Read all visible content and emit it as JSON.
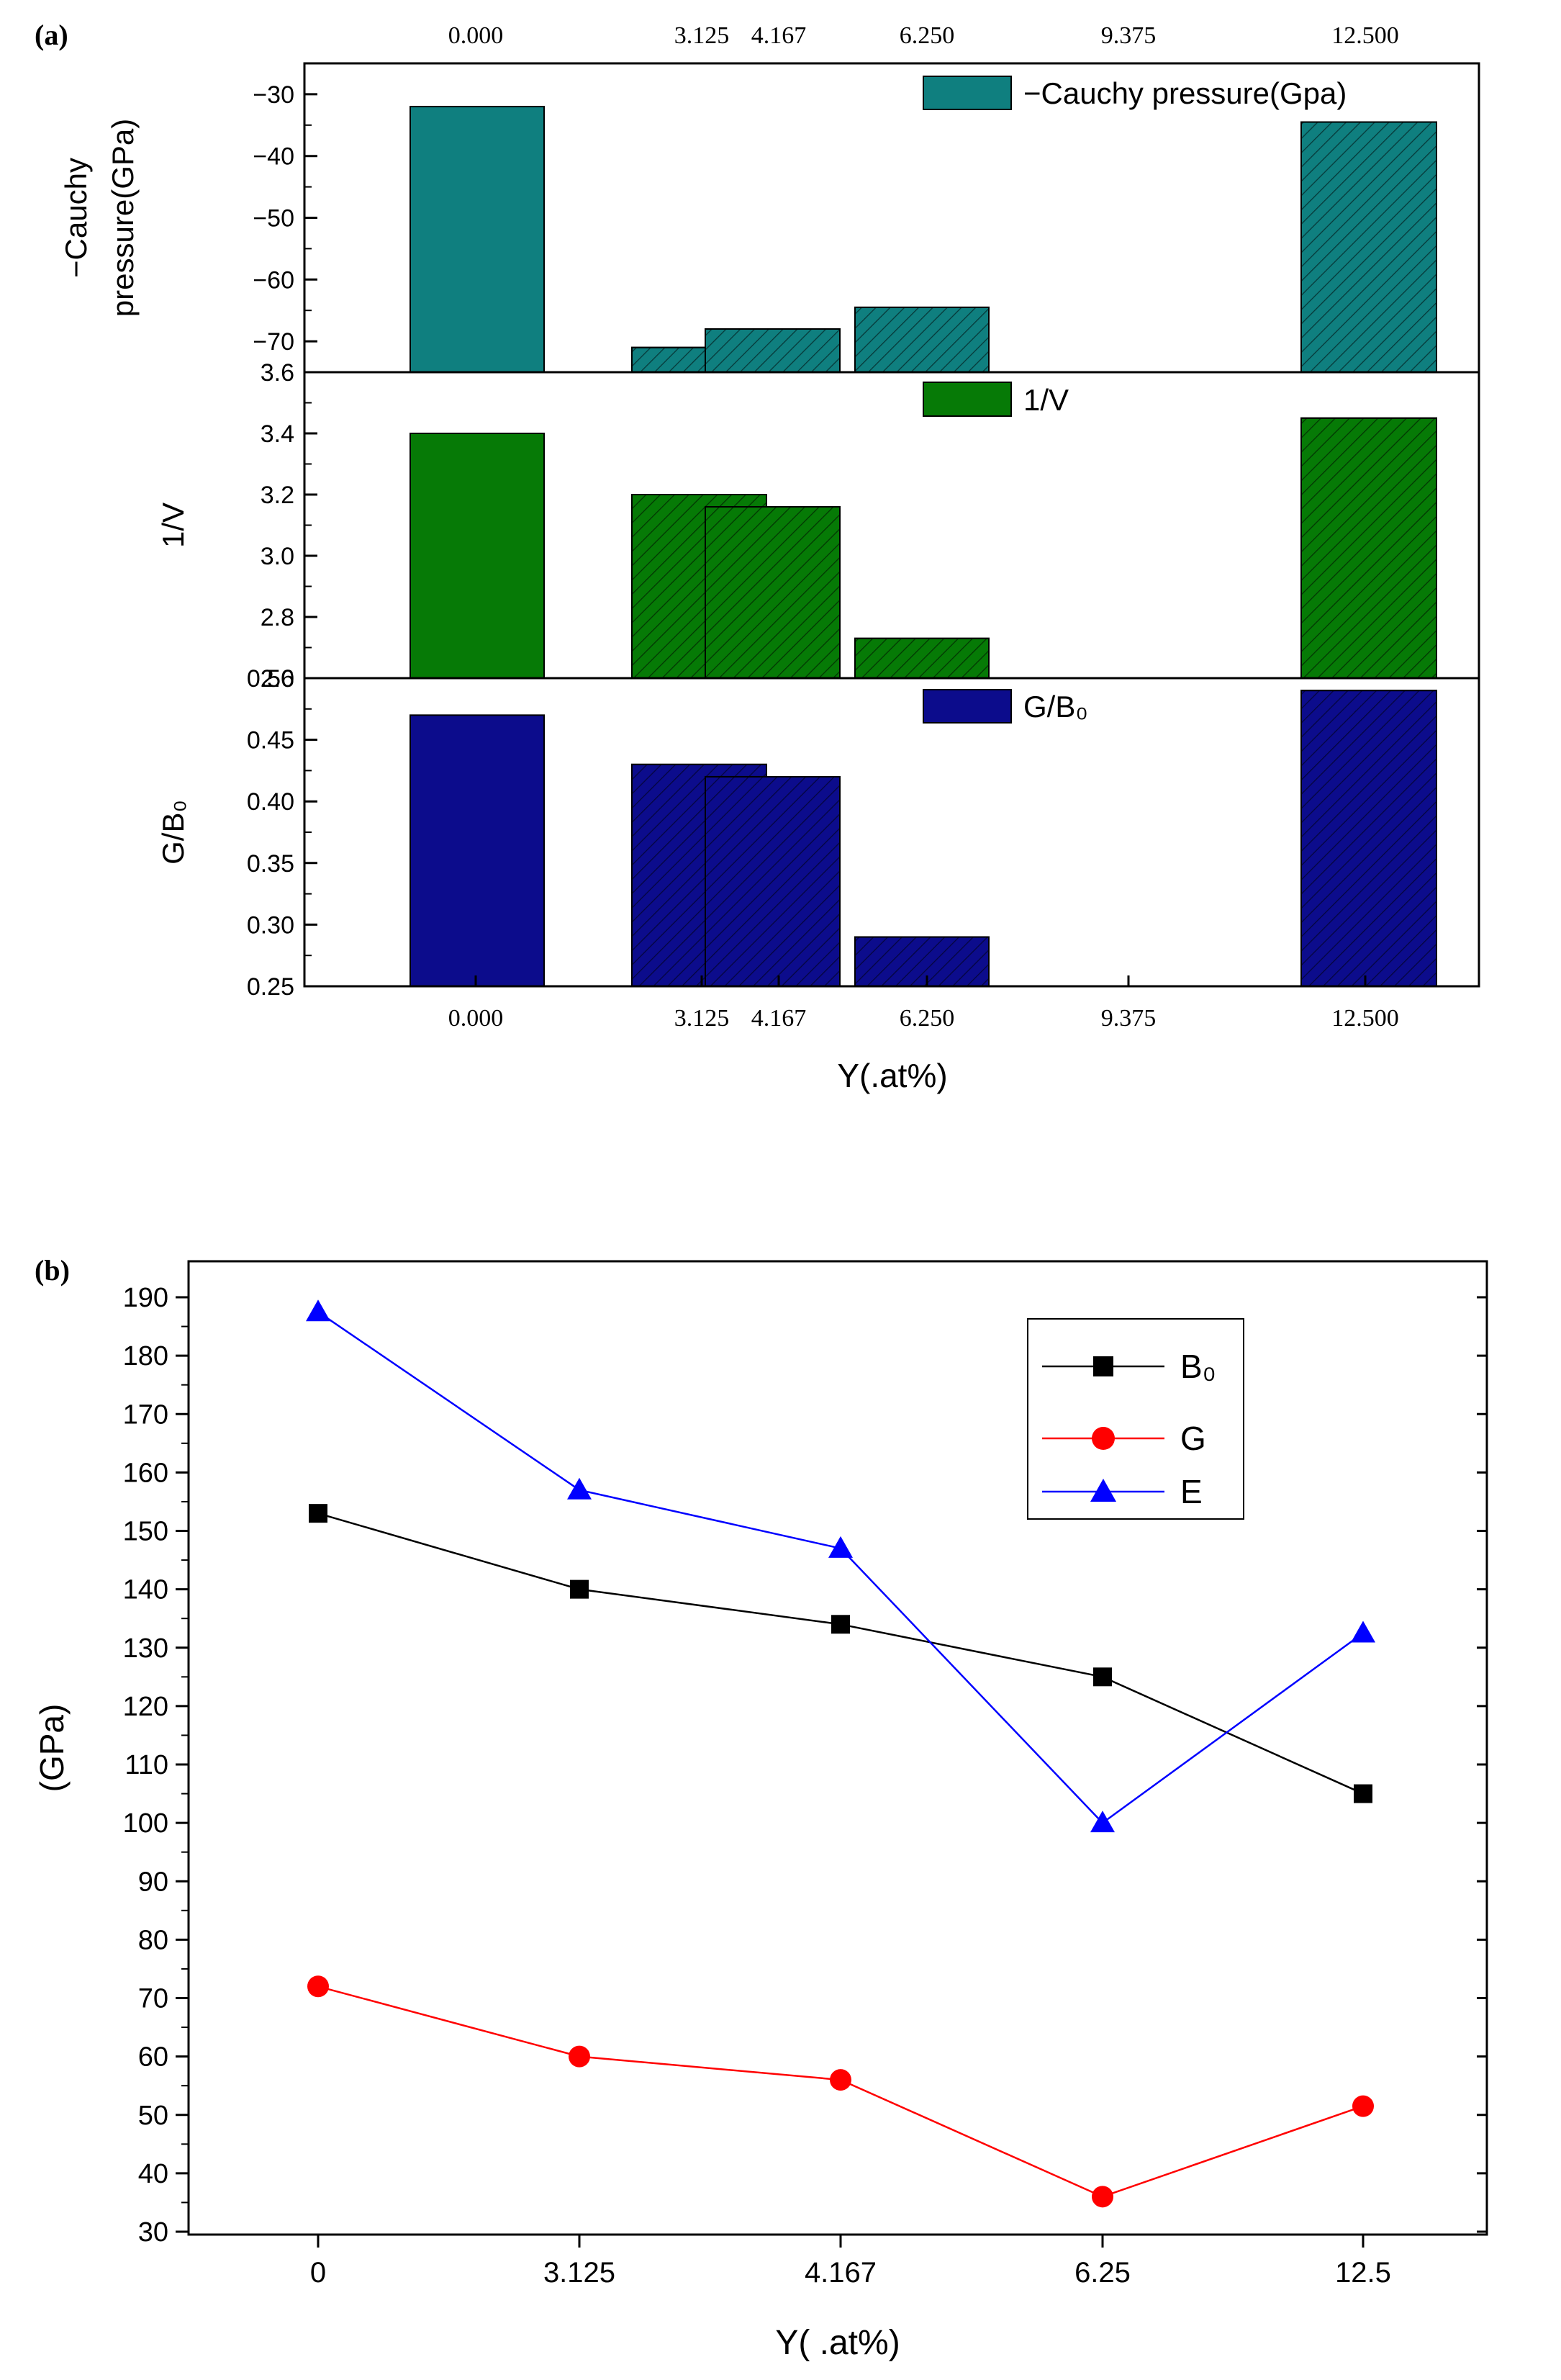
{
  "chart_data": [
    {
      "panel": "(a)",
      "type": "bar",
      "x_categories": [
        "0.000",
        "3.125",
        "4.167",
        "6.250",
        "9.375",
        "12.500"
      ],
      "xlabel": "Y(.at%)",
      "subplots": [
        {
          "ylabel_line1": "−Cauchy",
          "ylabel_line2": "pressure(GPa)",
          "legend": "−Cauchy pressure(Gpa)",
          "color": "#0f7f7f",
          "ylim": [
            -75,
            -25
          ],
          "yticks": [
            -30,
            -40,
            -50,
            -60,
            -70
          ],
          "ytick_labels": [
            "−30",
            "−40",
            "−50",
            "−60",
            "−70"
          ],
          "x": [
            0,
            3.125,
            4.167,
            6.25,
            12.5
          ],
          "values": [
            -32,
            -71,
            -68,
            -64.5,
            -34.5
          ]
        },
        {
          "ylabel": "1/V",
          "legend": "1/V",
          "color": "#067a06",
          "ylim": [
            2.6,
            3.6
          ],
          "yticks": [
            2.6,
            2.8,
            3.0,
            3.2,
            3.4,
            3.6
          ],
          "ytick_labels": [
            "2.6",
            "2.8",
            "3.0",
            "3.2",
            "3.4",
            "3.6"
          ],
          "x": [
            0,
            3.125,
            4.167,
            6.25,
            12.5
          ],
          "values": [
            3.4,
            3.2,
            3.16,
            2.73,
            3.45
          ]
        },
        {
          "ylabel": "G/B₀",
          "legend": "G/B₀",
          "color": "#0c0c8c",
          "ylim": [
            0.25,
            0.5
          ],
          "yticks": [
            0.25,
            0.3,
            0.35,
            0.4,
            0.45,
            0.5
          ],
          "ytick_labels": [
            "0.25",
            "0.30",
            "0.35",
            "0.40",
            "0.45",
            "0.50"
          ],
          "x": [
            0,
            3.125,
            4.167,
            6.25,
            12.5
          ],
          "values": [
            0.47,
            0.43,
            0.42,
            0.29,
            0.49
          ]
        }
      ]
    },
    {
      "panel": "(b)",
      "type": "line",
      "categories": [
        "0",
        "3.125",
        "4.167",
        "6.25",
        "12.5"
      ],
      "xlabel": "Y( .at%)",
      "ylabel": "(GPa)",
      "ylim": [
        30,
        190
      ],
      "yticks": [
        30,
        40,
        50,
        60,
        70,
        80,
        90,
        100,
        110,
        120,
        130,
        140,
        150,
        160,
        170,
        180,
        190
      ],
      "legend_position": "top-right",
      "series": [
        {
          "name": "B₀",
          "color": "#000000",
          "marker": "square",
          "values": [
            153,
            140,
            134,
            125,
            105
          ]
        },
        {
          "name": "G",
          "color": "#ff0000",
          "marker": "circle",
          "values": [
            72,
            60,
            56,
            36,
            51.5
          ]
        },
        {
          "name": "E",
          "color": "#0000ff",
          "marker": "triangle",
          "values": [
            187.5,
            157,
            147,
            100,
            132.5
          ]
        }
      ]
    }
  ]
}
